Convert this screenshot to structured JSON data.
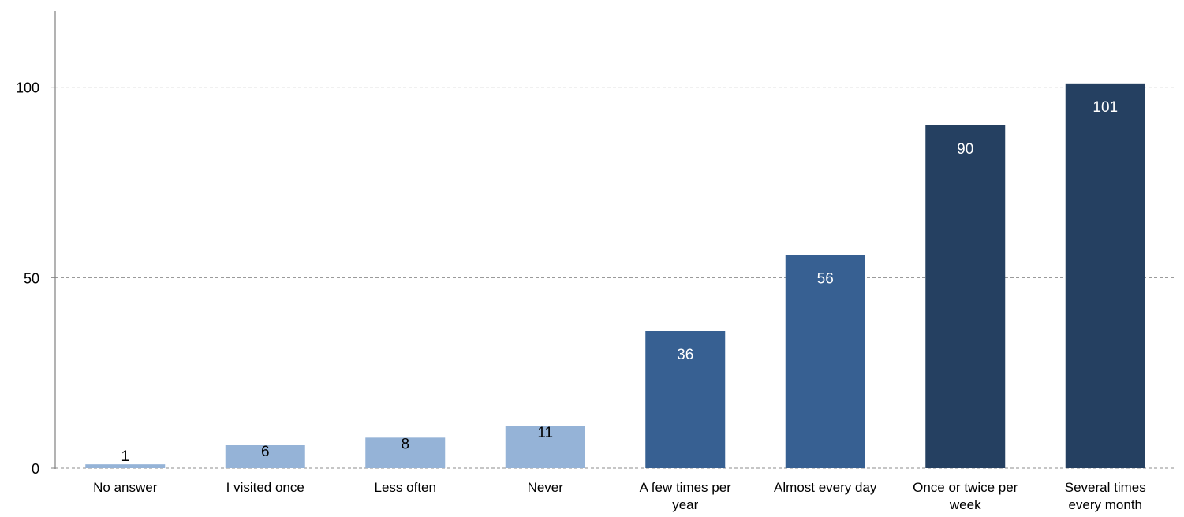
{
  "chart_data": {
    "type": "bar",
    "title": "",
    "xlabel": "",
    "ylabel": "",
    "categories": [
      "No answer",
      "I visited once",
      "Less often",
      "Never",
      "A few times per year",
      "Almost every day",
      "Once or twice per week",
      "Several times every month"
    ],
    "category_label_lines": [
      [
        "No answer"
      ],
      [
        "I visited once"
      ],
      [
        "Less often"
      ],
      [
        "Never"
      ],
      [
        "A few times per",
        "year"
      ],
      [
        "Almost every day"
      ],
      [
        "Once or twice per",
        "week"
      ],
      [
        "Several times",
        "every month"
      ]
    ],
    "values": [
      1,
      6,
      8,
      11,
      36,
      56,
      90,
      101
    ],
    "ylim": [
      0,
      120
    ],
    "yticks": [
      0,
      50,
      100
    ],
    "grid": true,
    "legend": "none",
    "colors": {
      "light": "#95b3d7",
      "medium": "#376092",
      "dark": "#254061",
      "grid": "#8c8c8c",
      "axis": "#808080"
    },
    "bar_color_groups": [
      "light",
      "light",
      "light",
      "light",
      "medium",
      "medium",
      "dark",
      "dark"
    ],
    "label_color_groups": [
      "dark-text",
      "dark-text",
      "dark-text",
      "dark-text",
      "light-text",
      "light-text",
      "light-text",
      "light-text"
    ]
  }
}
